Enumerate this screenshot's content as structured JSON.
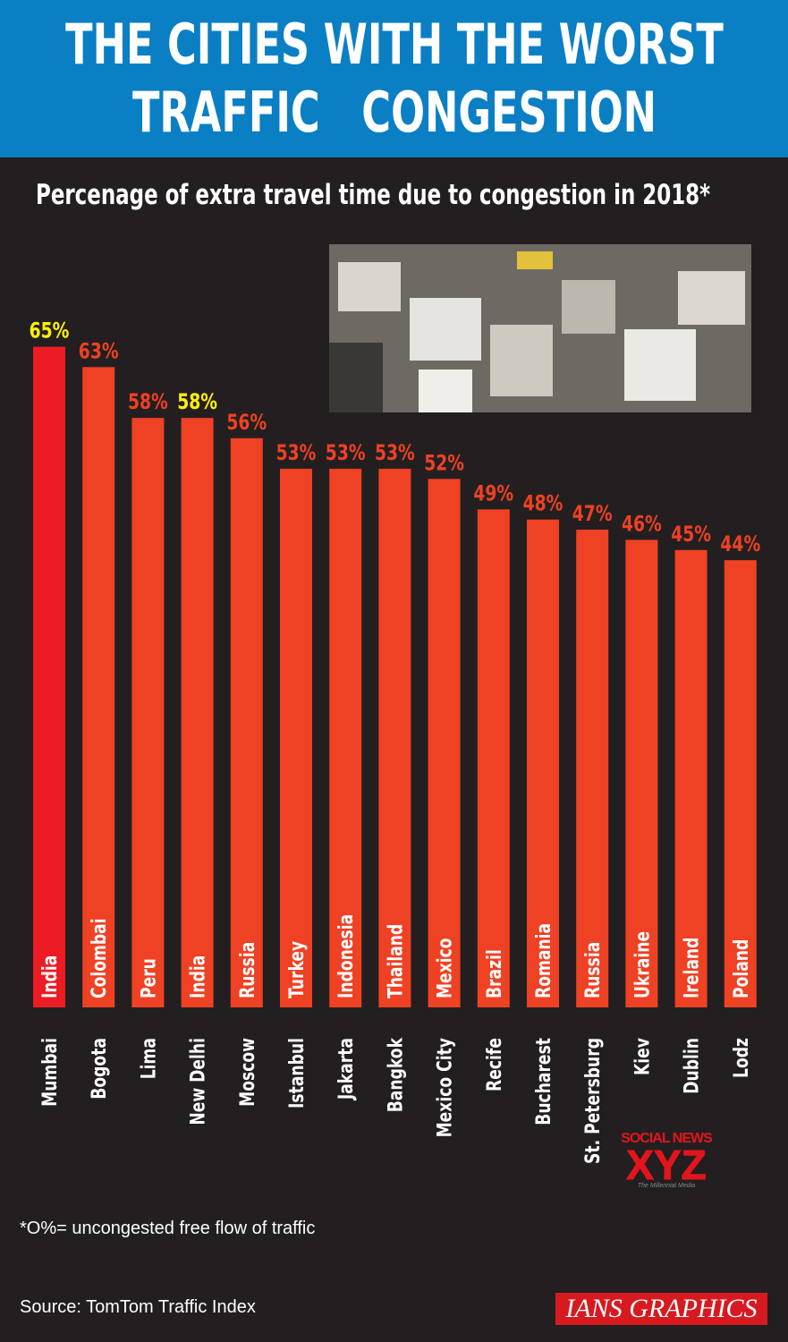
{
  "header": {
    "title": "THE CITIES WITH THE WORST\nTRAFFIC   CONGESTION",
    "background": "#0b7fc4"
  },
  "subtitle": "Percenage of extra travel time due to congestion in 2018*",
  "chart_data": {
    "type": "bar",
    "title": "THE CITIES WITH THE WORST TRAFFIC CONGESTION",
    "subtitle": "Percenage of extra travel time due to congestion in 2018*",
    "categories": [
      "Mumbai",
      "Bogota",
      "Lima",
      "New Delhi",
      "Moscow",
      "Istanbul",
      "Jakarta",
      "Bangkok",
      "Mexico City",
      "Recife",
      "Bucharest",
      "St. Petersburg",
      "Kiev",
      "Dublin",
      "Lodz"
    ],
    "countries": [
      "India",
      "Colombai",
      "Peru",
      "India",
      "Russia",
      "Turkey",
      "Indonesia",
      "Thailand",
      "Mexico",
      "Brazil",
      "Romania",
      "Russia",
      "Ukraine",
      "Ireland",
      "Poland"
    ],
    "values": [
      65,
      63,
      58,
      58,
      56,
      53,
      53,
      53,
      52,
      49,
      48,
      47,
      46,
      45,
      44
    ],
    "value_labels": [
      "65%",
      "63%",
      "58%",
      "58%",
      "56%",
      "53%",
      "53%",
      "53%",
      "52%",
      "49%",
      "48%",
      "47%",
      "46%",
      "45%",
      "44%"
    ],
    "highlighted": [
      "Mumbai",
      "New Delhi"
    ],
    "ylim": [
      0,
      65
    ],
    "grid": false,
    "colors": {
      "bar": "#ef4123",
      "bar_top": "#ed1c24",
      "label": "#ef4123",
      "highlight_label": "#fff200"
    }
  },
  "footnote": "*O%= uncongested free flow of traffic",
  "source": "Source: TomTom Traffic Index",
  "credit": "IANS GRAPHICS",
  "watermark": {
    "line1": "SOCIAL NEWS",
    "line2": "XYZ",
    "line3": "The Millennial Media"
  }
}
